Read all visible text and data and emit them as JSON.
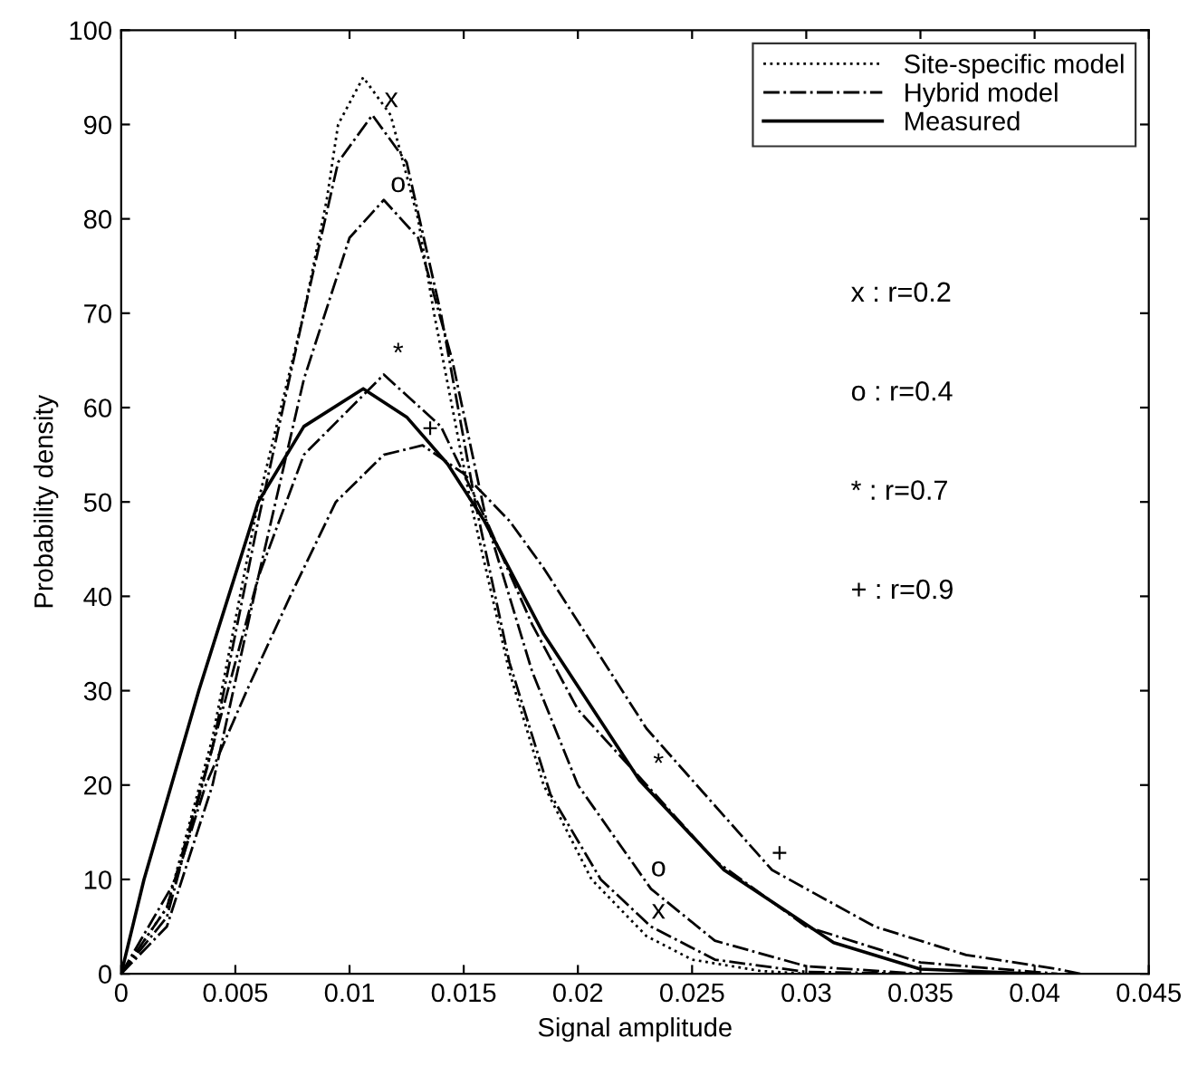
{
  "chart_data": {
    "type": "line",
    "xlabel": "Signal amplitude",
    "ylabel": "Probability density",
    "xlim": [
      0,
      0.045
    ],
    "ylim": [
      0,
      100
    ],
    "xticks": [
      0,
      0.005,
      0.01,
      0.015,
      0.02,
      0.025,
      0.03,
      0.035,
      0.04,
      0.045
    ],
    "yticks": [
      0,
      10,
      20,
      30,
      40,
      50,
      60,
      70,
      80,
      90,
      100
    ],
    "grid": false,
    "legend": "top right",
    "marker": "none",
    "series": [
      {
        "name": "Site-specific model",
        "color": "#000000",
        "line_style": "dotted",
        "x": [
          0,
          0.002,
          0.004,
          0.006,
          0.008,
          0.009,
          0.0095,
          0.0106,
          0.0118,
          0.013,
          0.0137,
          0.0153,
          0.017,
          0.0185,
          0.0206,
          0.023,
          0.025,
          0.028,
          0.03
        ],
        "values": [
          0,
          7,
          25,
          50,
          70,
          82,
          90,
          95,
          91,
          80,
          70,
          50,
          32,
          20,
          10,
          4,
          1.5,
          0.3,
          0
        ]
      },
      {
        "name": "Hybrid model",
        "color": "#000000",
        "line_style": "dashdot",
        "x": [
          0,
          0.002,
          0.004,
          0.006,
          0.008,
          0.0095,
          0.011,
          0.0125,
          0.014,
          0.0155,
          0.017,
          0.0188,
          0.021,
          0.0232,
          0.026,
          0.03,
          0.035
        ],
        "values": [
          0,
          6,
          24,
          48,
          70,
          86,
          91,
          86,
          70,
          50,
          33,
          19,
          10,
          5,
          1.5,
          0.2,
          0
        ]
      },
      {
        "color": "#000000",
        "line_style": "dashdot",
        "x": [
          0,
          0.002,
          0.004,
          0.006,
          0.008,
          0.01,
          0.0115,
          0.013,
          0.0145,
          0.016,
          0.018,
          0.02,
          0.0232,
          0.026,
          0.03,
          0.035
        ],
        "values": [
          0,
          5,
          20,
          42,
          63,
          78,
          82,
          78,
          65,
          48,
          32,
          20,
          9,
          3.5,
          0.8,
          0
        ]
      },
      {
        "color": "#000000",
        "line_style": "dashdot",
        "x": [
          0,
          0.002,
          0.004,
          0.006,
          0.008,
          0.0115,
          0.014,
          0.016,
          0.018,
          0.02,
          0.0232,
          0.026,
          0.03,
          0.035,
          0.04,
          0.041
        ],
        "values": [
          0,
          7,
          24,
          42,
          55,
          63.5,
          58,
          48,
          37,
          28,
          19.5,
          12,
          5,
          1.2,
          0.2,
          0
        ]
      },
      {
        "color": "#000000",
        "line_style": "dashdot",
        "x": [
          0,
          0.0024,
          0.0037,
          0.0055,
          0.0074,
          0.0094,
          0.0115,
          0.0132,
          0.015,
          0.017,
          0.0185,
          0.023,
          0.0285,
          0.033,
          0.037,
          0.041,
          0.042
        ],
        "values": [
          0,
          10,
          20,
          30,
          40,
          50,
          55,
          56,
          53,
          48,
          43,
          26,
          11,
          5,
          2,
          0.5,
          0
        ]
      },
      {
        "name": "Measured",
        "color": "#000000",
        "line_style": "solid",
        "x": [
          0,
          0.001,
          0.0022,
          0.0034,
          0.0047,
          0.006,
          0.008,
          0.0106,
          0.0125,
          0.0143,
          0.0159,
          0.0185,
          0.0227,
          0.0264,
          0.0312,
          0.035,
          0.04
        ],
        "values": [
          0,
          10,
          20,
          30,
          40,
          50,
          58,
          62,
          59,
          54,
          48,
          36,
          20.5,
          11,
          3.3,
          0.5,
          0
        ]
      }
    ],
    "annotations": [
      {
        "text": "x",
        "x": 0.0115,
        "y": 91
      },
      {
        "text": "o",
        "x": 0.0118,
        "y": 82
      },
      {
        "text": "*",
        "x": 0.0118,
        "y": 64
      },
      {
        "text": "+",
        "x": 0.0132,
        "y": 56
      },
      {
        "text": "x",
        "x": 0.0232,
        "y": 5
      },
      {
        "text": "o",
        "x": 0.0232,
        "y": 9.5
      },
      {
        "text": "*",
        "x": 0.0232,
        "y": 20.5
      },
      {
        "text": "+",
        "x": 0.0285,
        "y": 11
      },
      "x : r=0.2",
      "o : r=0.4",
      "* : r=0.7",
      "+ : r=0.9"
    ]
  }
}
